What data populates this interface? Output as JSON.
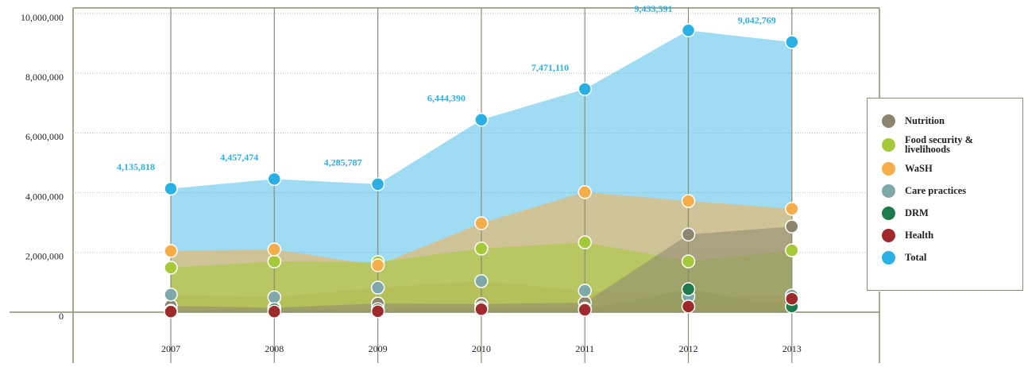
{
  "chart_data": {
    "type": "area",
    "categories": [
      "2007",
      "2008",
      "2009",
      "2010",
      "2011",
      "2012",
      "2013"
    ],
    "ylim": [
      0,
      10000000
    ],
    "yticks": [
      0,
      {
        "value": 2000000,
        "label": "2,000,000"
      },
      {
        "value": 4000000,
        "label": "4,000,000"
      },
      {
        "value": 6000000,
        "label": "6,000,000"
      },
      {
        "value": 8000000,
        "label": "8,000,000"
      },
      {
        "value": 10000000,
        "label": "10,000,000"
      }
    ],
    "grid": true,
    "legend": "right",
    "series": [
      {
        "name": "Nutrition",
        "color": "#8c8670",
        "values": [
          210000,
          150000,
          290000,
          270000,
          320000,
          2600000,
          2870000
        ]
      },
      {
        "name": "Food security & livelihoods",
        "color": "#a6c93a",
        "values": [
          1490000,
          1700000,
          1680000,
          2130000,
          2340000,
          1700000,
          2070000
        ]
      },
      {
        "name": "WaSH",
        "color": "#f5ae4a",
        "values": [
          2050000,
          2100000,
          1570000,
          2980000,
          4020000,
          3720000,
          3460000
        ]
      },
      {
        "name": "Care practices",
        "color": "#7fa8a8",
        "values": [
          590000,
          500000,
          820000,
          1040000,
          720000,
          530000,
          560000
        ]
      },
      {
        "name": "DRM",
        "color": "#1e7a4a",
        "values": [
          50000,
          100000,
          100000,
          150000,
          120000,
          770000,
          190000
        ]
      },
      {
        "name": "Health",
        "color": "#9e2a2b",
        "values": [
          20000,
          20000,
          30000,
          100000,
          80000,
          190000,
          450000
        ]
      },
      {
        "name": "Total",
        "color": "#2ab0e4",
        "values": [
          4135818,
          4457474,
          4285787,
          6444390,
          7471110,
          9433591,
          9042769
        ],
        "value_labels": [
          "4,135,818",
          "4,457,474",
          "4,285,787",
          "6,444,390",
          "7,471,110",
          "9,433,591",
          "9,042,769"
        ]
      }
    ]
  }
}
